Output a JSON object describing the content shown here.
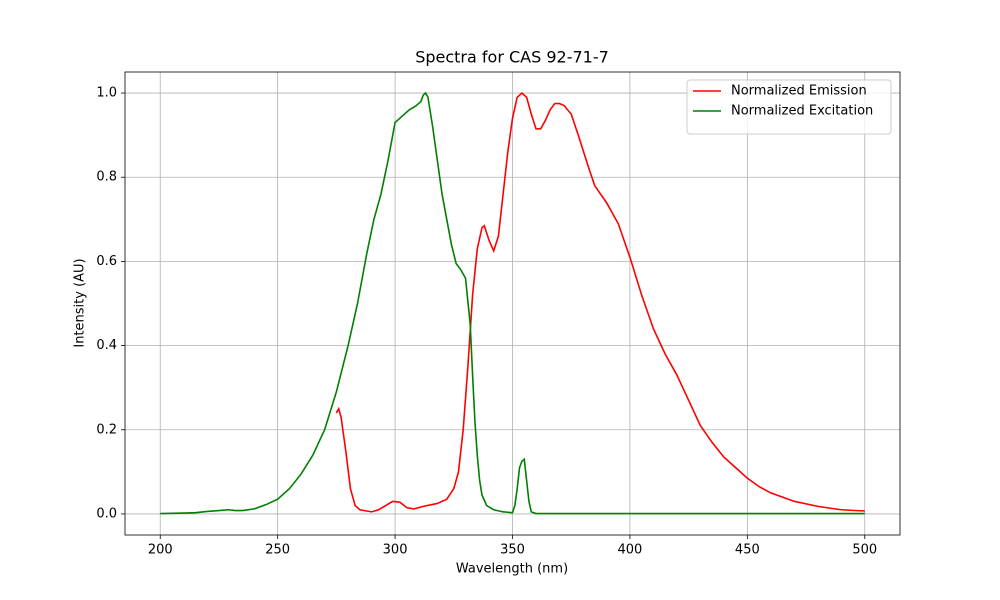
{
  "chart_data": {
    "type": "line",
    "title": "Spectra for CAS 92-71-7",
    "xlabel": "Wavelength (nm)",
    "ylabel": "Intensity (AU)",
    "xlim": [
      185,
      515
    ],
    "ylim": [
      -0.05,
      1.05
    ],
    "xticks": [
      200,
      250,
      300,
      350,
      400,
      450,
      500
    ],
    "yticks": [
      {
        "value": 0,
        "label": "0.0"
      },
      0.2,
      0.4,
      0.6,
      0.8,
      {
        "value": 1,
        "label": "1.0"
      }
    ],
    "grid": true,
    "legend": "upper right",
    "series": [
      {
        "name": "Normalized Emission",
        "color": "#ff0000",
        "x": [
          275,
          276,
          277,
          279,
          281,
          283,
          285,
          290,
          293,
          296,
          299,
          302,
          305,
          308,
          312,
          318,
          322,
          325,
          327,
          329,
          331,
          333,
          335,
          337,
          338,
          340,
          342,
          344,
          346,
          348,
          350,
          352,
          354,
          356,
          358,
          360,
          362,
          364,
          366,
          368,
          370,
          372,
          375,
          378,
          382,
          385,
          390,
          395,
          400,
          405,
          410,
          415,
          420,
          425,
          430,
          435,
          440,
          445,
          450,
          455,
          460,
          470,
          480,
          490,
          500
        ],
        "values": [
          0.24,
          0.25,
          0.23,
          0.15,
          0.06,
          0.02,
          0.01,
          0.005,
          0.01,
          0.02,
          0.03,
          0.028,
          0.015,
          0.012,
          0.018,
          0.025,
          0.035,
          0.06,
          0.1,
          0.2,
          0.35,
          0.52,
          0.63,
          0.68,
          0.685,
          0.65,
          0.625,
          0.66,
          0.76,
          0.86,
          0.94,
          0.99,
          1.0,
          0.99,
          0.95,
          0.915,
          0.915,
          0.935,
          0.96,
          0.975,
          0.975,
          0.97,
          0.95,
          0.9,
          0.83,
          0.78,
          0.74,
          0.69,
          0.61,
          0.52,
          0.44,
          0.38,
          0.33,
          0.27,
          0.21,
          0.17,
          0.135,
          0.11,
          0.085,
          0.065,
          0.05,
          0.03,
          0.018,
          0.01,
          0.007
        ]
      },
      {
        "name": "Normalized Excitation",
        "color": "#008000",
        "x": [
          200,
          210,
          215,
          220,
          225,
          229,
          232,
          235,
          240,
          245,
          250,
          255,
          260,
          265,
          270,
          275,
          280,
          284,
          288,
          291,
          294,
          297,
          300,
          303,
          306,
          309,
          311,
          312,
          313,
          314,
          316,
          318,
          320,
          322,
          324,
          326,
          328,
          330,
          332,
          333,
          334,
          335,
          336,
          337,
          339,
          342,
          346,
          350,
          351,
          352,
          353,
          354,
          355,
          356,
          357,
          358,
          360,
          400,
          500
        ],
        "values": [
          0.001,
          0.002,
          0.003,
          0.006,
          0.008,
          0.01,
          0.008,
          0.008,
          0.012,
          0.022,
          0.035,
          0.06,
          0.095,
          0.14,
          0.2,
          0.29,
          0.4,
          0.5,
          0.62,
          0.7,
          0.76,
          0.84,
          0.93,
          0.945,
          0.96,
          0.97,
          0.98,
          0.995,
          1.0,
          0.99,
          0.92,
          0.84,
          0.76,
          0.7,
          0.64,
          0.595,
          0.58,
          0.56,
          0.45,
          0.33,
          0.22,
          0.14,
          0.08,
          0.045,
          0.02,
          0.01,
          0.005,
          0.003,
          0.02,
          0.06,
          0.11,
          0.125,
          0.13,
          0.08,
          0.03,
          0.005,
          0.001,
          0.001,
          0.001
        ]
      }
    ]
  }
}
